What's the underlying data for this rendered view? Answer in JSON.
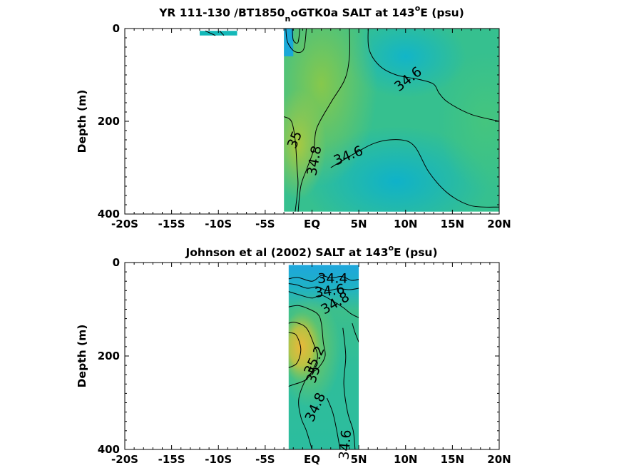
{
  "colors": {
    "low": "#1aa8d8",
    "mid_low": "#13b8b8",
    "mid": "#2ebf9a",
    "mid_high": "#7ac95a",
    "high": "#e8b43c",
    "frame": "#000000"
  },
  "chart_data": [
    {
      "type": "contour",
      "title_main": "YR 111-130 /BT1850",
      "title_sub": "n",
      "title_rest": "oGTK0a SALT at 143",
      "title_sup": "o",
      "title_end": "E (psu)",
      "xlabel": "",
      "ylabel": "Depth (m)",
      "xlim": [
        -20,
        20
      ],
      "ylim": [
        400,
        0
      ],
      "x_ticks": [
        -20,
        -15,
        -10,
        -5,
        0,
        5,
        10,
        15,
        20
      ],
      "x_tick_labels": [
        "-20S",
        "-15S",
        "-10S",
        "-5S",
        "EQ",
        "5N",
        "10N",
        "15N",
        "20N"
      ],
      "y_ticks": [
        0,
        200,
        400
      ],
      "y_tick_labels": [
        "0",
        "200",
        "400"
      ],
      "contour_labels": [
        {
          "text": "34.6",
          "x": 10.3,
          "y": 110,
          "rot": -38
        },
        {
          "text": "35",
          "x": -1.8,
          "y": 240,
          "rot": -68
        },
        {
          "text": "34.8",
          "x": 0.3,
          "y": 285,
          "rot": -80
        },
        {
          "text": "34.6",
          "x": 3.9,
          "y": 275,
          "rot": -22
        }
      ],
      "data_extent": {
        "x": [
          -3,
          20
        ],
        "y": [
          0,
          395
        ]
      },
      "surface_patch": {
        "x": [
          -12,
          -8
        ],
        "y": [
          5,
          15
        ]
      }
    },
    {
      "type": "contour",
      "title_main": "Johnson et al (2002) SALT at 143",
      "title_sup": "o",
      "title_end": "E (psu)",
      "xlabel": "",
      "ylabel": "Depth (m)",
      "xlim": [
        -20,
        20
      ],
      "ylim": [
        400,
        0
      ],
      "x_ticks": [
        -20,
        -15,
        -10,
        -5,
        0,
        5,
        10,
        15,
        20
      ],
      "x_tick_labels": [
        "-20S",
        "-15S",
        "-10S",
        "-5S",
        "EQ",
        "5N",
        "10N",
        "15N",
        "20N"
      ],
      "y_ticks": [
        0,
        200,
        400
      ],
      "y_tick_labels": [
        "0",
        "200",
        "400"
      ],
      "contour_labels": [
        {
          "text": "34.4",
          "x": 2.2,
          "y": 35,
          "rot": 0
        },
        {
          "text": "34.6",
          "x": 1.9,
          "y": 62,
          "rot": -8
        },
        {
          "text": "34.8",
          "x": 2.5,
          "y": 88,
          "rot": -30
        },
        {
          "text": "35.2",
          "x": 0.3,
          "y": 210,
          "rot": -65
        },
        {
          "text": "35",
          "x": 0.2,
          "y": 240,
          "rot": -72
        },
        {
          "text": "34.8",
          "x": 0.4,
          "y": 310,
          "rot": -65
        },
        {
          "text": "34.6",
          "x": 3.6,
          "y": 390,
          "rot": -85
        }
      ],
      "data_extent": {
        "x": [
          -2.5,
          5
        ],
        "y": [
          5,
          400
        ]
      }
    }
  ]
}
